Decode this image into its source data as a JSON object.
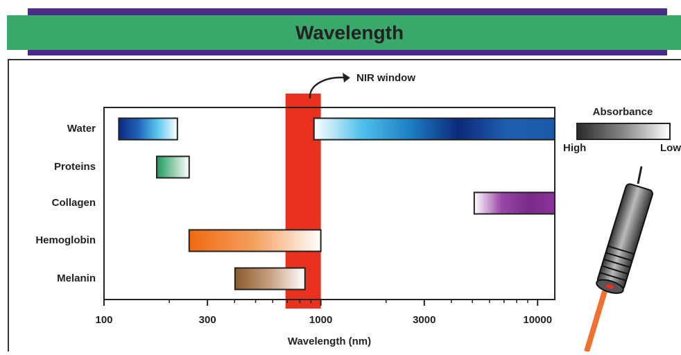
{
  "header": {
    "title": "Wavelength"
  },
  "chart_data": {
    "type": "range-bar",
    "x_label": "Wavelength (nm)",
    "log_x": true,
    "xlim": [
      100,
      12000
    ],
    "xticks": [
      100,
      300,
      1000,
      3000,
      10000
    ],
    "minor_xticks": [
      200,
      400,
      500,
      600,
      700,
      800,
      900,
      2000,
      4000,
      5000,
      6000,
      7000,
      8000,
      9000
    ],
    "categories": [
      "Water",
      "Proteins",
      "Collagen",
      "Hemoglobin",
      "Melanin"
    ],
    "bars": [
      {
        "category": 0,
        "start": 117,
        "end": 218,
        "colors": [
          "#0b2a80",
          "#1e63b8",
          "#5cc8ec",
          "#ffffff"
        ]
      },
      {
        "category": 0,
        "start": 930,
        "end": 12000,
        "colors": [
          "#ffffff",
          "#4dc0e8",
          "#1e7ec4",
          "#0a2a78",
          "#1f5fb0",
          "#1a5aa8"
        ]
      },
      {
        "category": 1,
        "start": 175,
        "end": 247,
        "colors": [
          "#1e9a5a",
          "#ffffff"
        ]
      },
      {
        "category": 2,
        "start": 5100,
        "end": 12000,
        "colors": [
          "#ffffff",
          "#9a48a8",
          "#7a2a8a",
          "#8a3498"
        ]
      },
      {
        "category": 3,
        "start": 247,
        "end": 1000,
        "colors": [
          "#f06a10",
          "#f5a060",
          "#ffffff"
        ]
      },
      {
        "category": 4,
        "start": 402,
        "end": 845,
        "colors": [
          "#8a5a30",
          "#c9a080",
          "#ffffff"
        ]
      }
    ],
    "window": {
      "label": "NIR window",
      "start": 687,
      "end": 1000,
      "color": "#e8321e"
    },
    "legend": {
      "title": "Absorbance",
      "high": "High",
      "low": "Low",
      "colors": [
        "#2a2a2a",
        "#888888",
        "#ffffff"
      ]
    }
  }
}
